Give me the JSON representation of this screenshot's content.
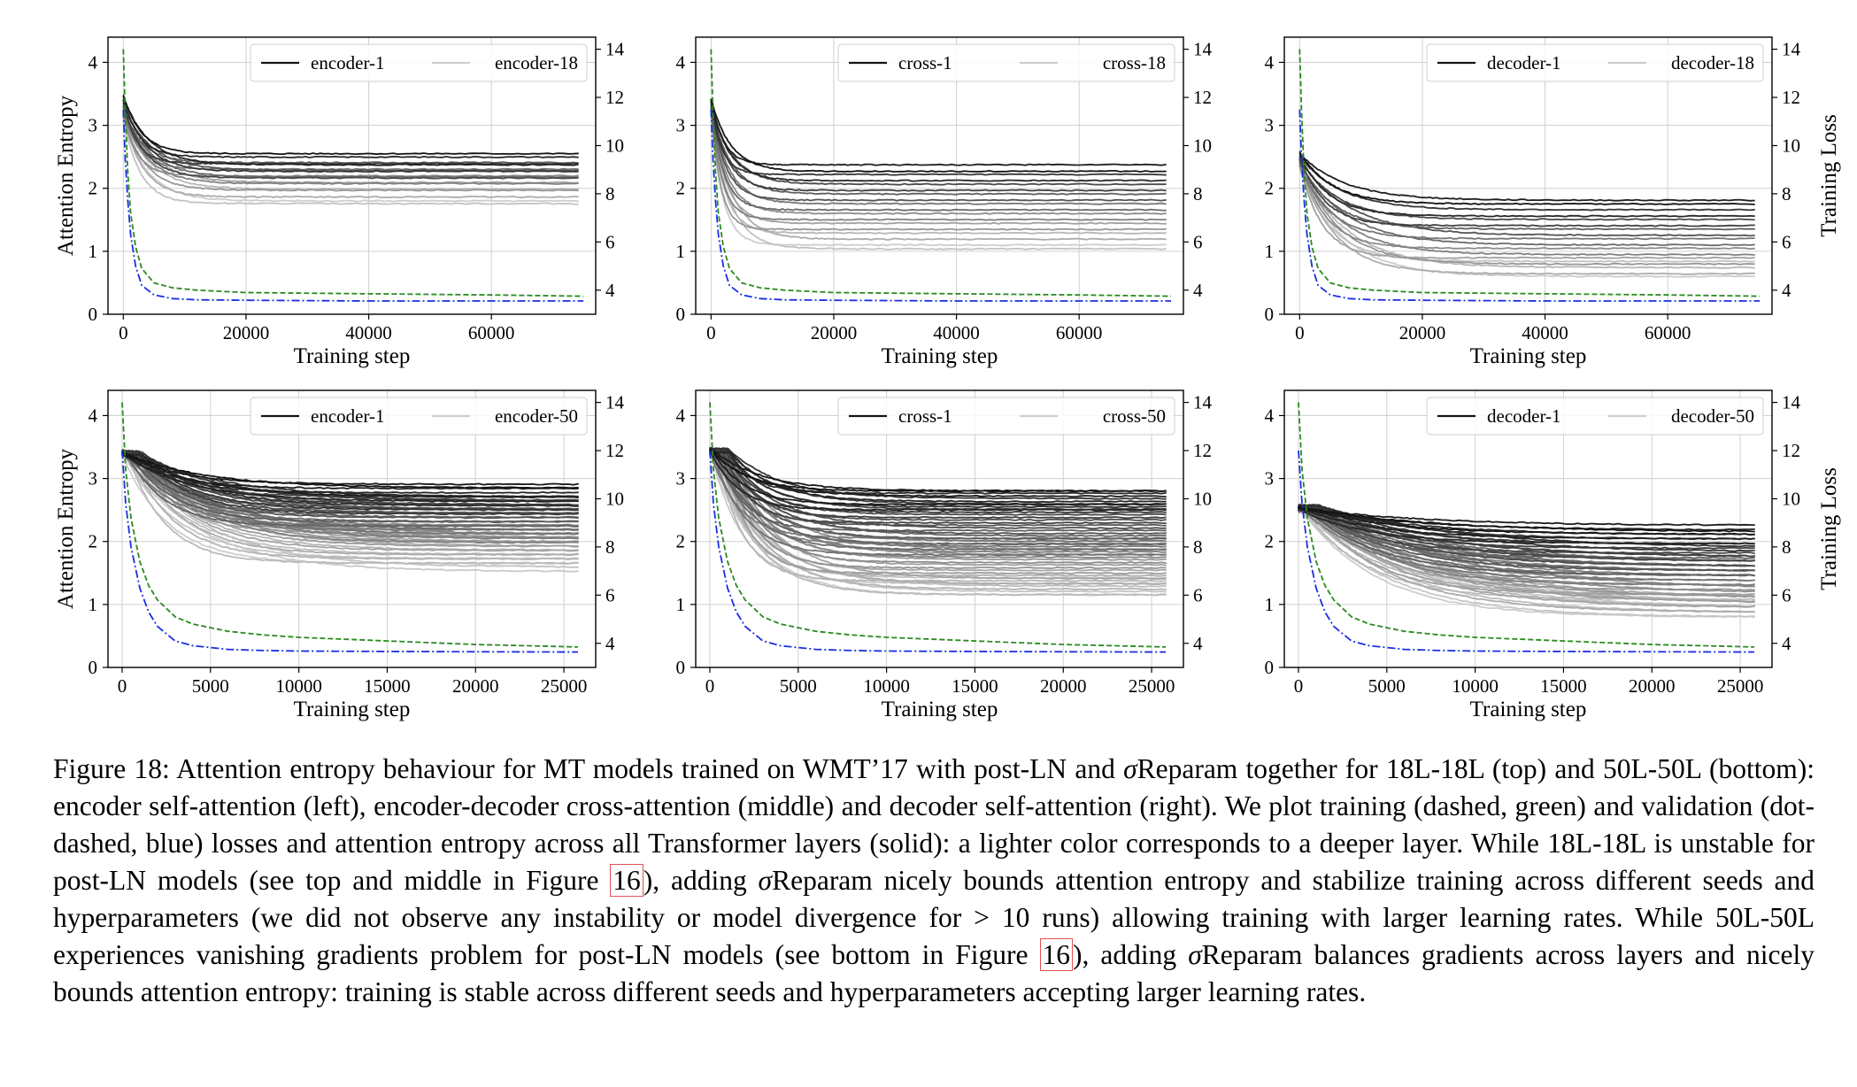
{
  "figure": {
    "caption_parts": [
      "Figure 18: Attention entropy behaviour for MT models trained on WMT’17 with post-LN and ",
      "σ",
      "Reparam together for 18L-18L (top) and 50L-50L (bottom): encoder self-attention (left), encoder-decoder cross-attention (middle) and decoder self-attention (right). We plot training (dashed, green) and validation (dot-dashed, blue) losses and attention entropy across all Transformer layers (solid): a lighter color corresponds to a deeper layer. While 18L-18L is unstable for post-LN models (see top and middle in Figure ",
      "16",
      "), adding ",
      "σ",
      "Reparam nicely bounds attention entropy and stabilize training across different seeds and hyperparameters (we did not observe any instability or model divergence for > 10 runs) allowing training with larger learning rates. While 50L-50L experiences vanishing gradients problem for post-LN models (see bottom in Figure ",
      "16",
      "), adding ",
      "σ",
      "Reparam balances gradients across layers and nicely bounds attention entropy: training is stable across different seeds and hyperparameters accepting larger learning rates."
    ]
  },
  "chart_data": [
    {
      "type": "line",
      "panel": "top-left",
      "xlabel": "Training step",
      "ylabel": "Attention Entropy",
      "y2label": "",
      "xlim": [
        -2500,
        77000
      ],
      "xticks": [
        0,
        20000,
        40000,
        60000
      ],
      "ylim": [
        0,
        4.4
      ],
      "yticks": [
        0,
        1,
        2,
        3,
        4
      ],
      "y2lim": [
        3,
        14.5
      ],
      "y2ticks": [
        4,
        6,
        8,
        10,
        12,
        14
      ],
      "legend": [
        "encoder-1",
        "encoder-18"
      ],
      "legend_position": "top-right",
      "n_layers": 18,
      "layer_start": [
        3.45,
        3.05
      ],
      "layer_end": [
        2.55,
        1.8
      ],
      "tau": 3500,
      "train_loss": {
        "x": [
          0,
          300,
          700,
          1200,
          2000,
          3000,
          5000,
          8000,
          12000,
          20000,
          40000,
          60000,
          75000
        ],
        "y": [
          14.0,
          11.5,
          9.0,
          7.2,
          5.8,
          4.9,
          4.3,
          4.1,
          4.0,
          3.9,
          3.85,
          3.8,
          3.75
        ]
      },
      "val_loss": {
        "x": [
          0,
          300,
          700,
          1200,
          2000,
          3000,
          5000,
          8000,
          12000,
          20000,
          40000,
          60000,
          75000
        ],
        "y": [
          11.5,
          9.5,
          7.8,
          6.3,
          5.0,
          4.2,
          3.8,
          3.65,
          3.6,
          3.58,
          3.55,
          3.55,
          3.55
        ]
      },
      "grid": true
    },
    {
      "type": "line",
      "panel": "top-middle",
      "xlabel": "Training step",
      "ylabel": "",
      "y2label": "",
      "xlim": [
        -2500,
        77000
      ],
      "xticks": [
        0,
        20000,
        40000,
        60000
      ],
      "ylim": [
        0,
        4.4
      ],
      "yticks": [
        0,
        1,
        2,
        3,
        4
      ],
      "y2lim": [
        3,
        14.5
      ],
      "y2ticks": [
        4,
        6,
        8,
        10,
        12,
        14
      ],
      "legend": [
        "cross-1",
        "cross-18"
      ],
      "legend_position": "top-right",
      "n_layers": 18,
      "layer_start": [
        3.4,
        3.15
      ],
      "layer_end": [
        2.27,
        1.1
      ],
      "tau": 2500,
      "train_loss": {
        "x": [
          0,
          300,
          700,
          1200,
          2000,
          3000,
          5000,
          8000,
          12000,
          20000,
          40000,
          60000,
          75000
        ],
        "y": [
          14.0,
          11.5,
          9.0,
          7.2,
          5.8,
          4.9,
          4.3,
          4.1,
          4.0,
          3.9,
          3.85,
          3.8,
          3.75
        ]
      },
      "val_loss": {
        "x": [
          0,
          300,
          700,
          1200,
          2000,
          3000,
          5000,
          8000,
          12000,
          20000,
          40000,
          60000,
          75000
        ],
        "y": [
          11.5,
          9.5,
          7.8,
          6.3,
          5.0,
          4.2,
          3.8,
          3.65,
          3.6,
          3.58,
          3.55,
          3.55,
          3.55
        ]
      },
      "grid": true
    },
    {
      "type": "line",
      "panel": "top-right",
      "xlabel": "Training step",
      "ylabel": "",
      "y2label": "Training Loss",
      "xlim": [
        -2500,
        77000
      ],
      "xticks": [
        0,
        20000,
        40000,
        60000
      ],
      "ylim": [
        0,
        4.4
      ],
      "yticks": [
        0,
        1,
        2,
        3,
        4
      ],
      "y2lim": [
        3,
        14.5
      ],
      "y2ticks": [
        4,
        6,
        8,
        10,
        12,
        14
      ],
      "legend": [
        "decoder-1",
        "decoder-18"
      ],
      "legend_position": "top-right",
      "n_layers": 18,
      "layer_start": [
        2.55,
        2.3
      ],
      "layer_end": [
        1.75,
        0.6
      ],
      "tau": 6000,
      "train_loss": {
        "x": [
          0,
          300,
          700,
          1200,
          2000,
          3000,
          5000,
          8000,
          12000,
          20000,
          40000,
          60000,
          75000
        ],
        "y": [
          14.0,
          11.5,
          9.0,
          7.2,
          5.8,
          4.9,
          4.3,
          4.1,
          4.0,
          3.9,
          3.85,
          3.8,
          3.75
        ]
      },
      "val_loss": {
        "x": [
          0,
          300,
          700,
          1200,
          2000,
          3000,
          5000,
          8000,
          12000,
          20000,
          40000,
          60000,
          75000
        ],
        "y": [
          11.5,
          9.5,
          7.8,
          6.3,
          5.0,
          4.2,
          3.8,
          3.65,
          3.6,
          3.58,
          3.55,
          3.55,
          3.55
        ]
      },
      "grid": true
    },
    {
      "type": "line",
      "panel": "bottom-left",
      "xlabel": "Training step",
      "ylabel": "Attention Entropy",
      "y2label": "",
      "xlim": [
        -800,
        26800
      ],
      "xticks": [
        0,
        5000,
        10000,
        15000,
        20000,
        25000
      ],
      "ylim": [
        0,
        4.4
      ],
      "yticks": [
        0,
        1,
        2,
        3,
        4
      ],
      "y2lim": [
        3,
        14.5
      ],
      "y2ticks": [
        4,
        6,
        8,
        10,
        12,
        14
      ],
      "legend": [
        "encoder-1",
        "encoder-50"
      ],
      "legend_position": "top-right",
      "n_layers": 50,
      "layer_start": [
        3.4,
        3.4
      ],
      "layer_end": [
        2.85,
        1.65
      ],
      "tau": 3500,
      "train_loss": {
        "x": [
          0,
          200,
          500,
          1000,
          1500,
          2000,
          3000,
          4000,
          6000,
          8000,
          10000,
          15000,
          20000,
          25800
        ],
        "y": [
          14.0,
          11.2,
          9.2,
          7.4,
          6.4,
          5.8,
          5.1,
          4.8,
          4.5,
          4.35,
          4.25,
          4.1,
          3.95,
          3.85
        ]
      },
      "val_loss": {
        "x": [
          0,
          200,
          500,
          1000,
          1500,
          2000,
          3000,
          4000,
          6000,
          8000,
          10000,
          15000,
          20000,
          25800
        ],
        "y": [
          12.0,
          9.8,
          8.0,
          6.3,
          5.3,
          4.7,
          4.1,
          3.9,
          3.75,
          3.7,
          3.68,
          3.66,
          3.65,
          3.64
        ]
      },
      "grid": true
    },
    {
      "type": "line",
      "panel": "bottom-middle",
      "xlabel": "Training step",
      "ylabel": "",
      "y2label": "",
      "xlim": [
        -800,
        26800
      ],
      "xticks": [
        0,
        5000,
        10000,
        15000,
        20000,
        25000
      ],
      "ylim": [
        0,
        4.4
      ],
      "yticks": [
        0,
        1,
        2,
        3,
        4
      ],
      "y2lim": [
        3,
        14.5
      ],
      "y2ticks": [
        4,
        6,
        8,
        10,
        12,
        14
      ],
      "legend": [
        "cross-1",
        "cross-50"
      ],
      "legend_position": "top-right",
      "n_layers": 50,
      "layer_start": [
        3.45,
        3.4
      ],
      "layer_end": [
        2.8,
        1.15
      ],
      "tau": 2200,
      "train_loss": {
        "x": [
          0,
          200,
          500,
          1000,
          1500,
          2000,
          3000,
          4000,
          6000,
          8000,
          10000,
          15000,
          20000,
          25800
        ],
        "y": [
          14.0,
          11.2,
          9.2,
          7.4,
          6.4,
          5.8,
          5.1,
          4.8,
          4.5,
          4.35,
          4.25,
          4.1,
          3.95,
          3.85
        ]
      },
      "val_loss": {
        "x": [
          0,
          200,
          500,
          1000,
          1500,
          2000,
          3000,
          4000,
          6000,
          8000,
          10000,
          15000,
          20000,
          25800
        ],
        "y": [
          12.0,
          9.8,
          8.0,
          6.3,
          5.3,
          4.7,
          4.1,
          3.9,
          3.75,
          3.7,
          3.68,
          3.66,
          3.65,
          3.64
        ]
      },
      "grid": true
    },
    {
      "type": "line",
      "panel": "bottom-right",
      "xlabel": "Training step",
      "ylabel": "",
      "y2label": "Training Loss",
      "xlim": [
        -800,
        26800
      ],
      "xticks": [
        0,
        5000,
        10000,
        15000,
        20000,
        25000
      ],
      "ylim": [
        0,
        4.4
      ],
      "yticks": [
        0,
        1,
        2,
        3,
        4
      ],
      "y2lim": [
        3,
        14.5
      ],
      "y2ticks": [
        4,
        6,
        8,
        10,
        12,
        14
      ],
      "legend": [
        "decoder-1",
        "decoder-50"
      ],
      "legend_position": "top-right",
      "n_layers": 50,
      "layer_start": [
        2.55,
        2.5
      ],
      "layer_end": [
        2.15,
        0.8
      ],
      "tau": 5500,
      "train_loss": {
        "x": [
          0,
          200,
          500,
          1000,
          1500,
          2000,
          3000,
          4000,
          6000,
          8000,
          10000,
          15000,
          20000,
          25800
        ],
        "y": [
          14.0,
          11.2,
          9.2,
          7.4,
          6.4,
          5.8,
          5.1,
          4.8,
          4.5,
          4.35,
          4.25,
          4.1,
          3.95,
          3.85
        ]
      },
      "val_loss": {
        "x": [
          0,
          200,
          500,
          1000,
          1500,
          2000,
          3000,
          4000,
          6000,
          8000,
          10000,
          15000,
          20000,
          25800
        ],
        "y": [
          12.0,
          9.8,
          8.0,
          6.3,
          5.3,
          4.7,
          4.1,
          3.9,
          3.75,
          3.7,
          3.68,
          3.66,
          3.65,
          3.64
        ]
      },
      "grid": true
    }
  ]
}
